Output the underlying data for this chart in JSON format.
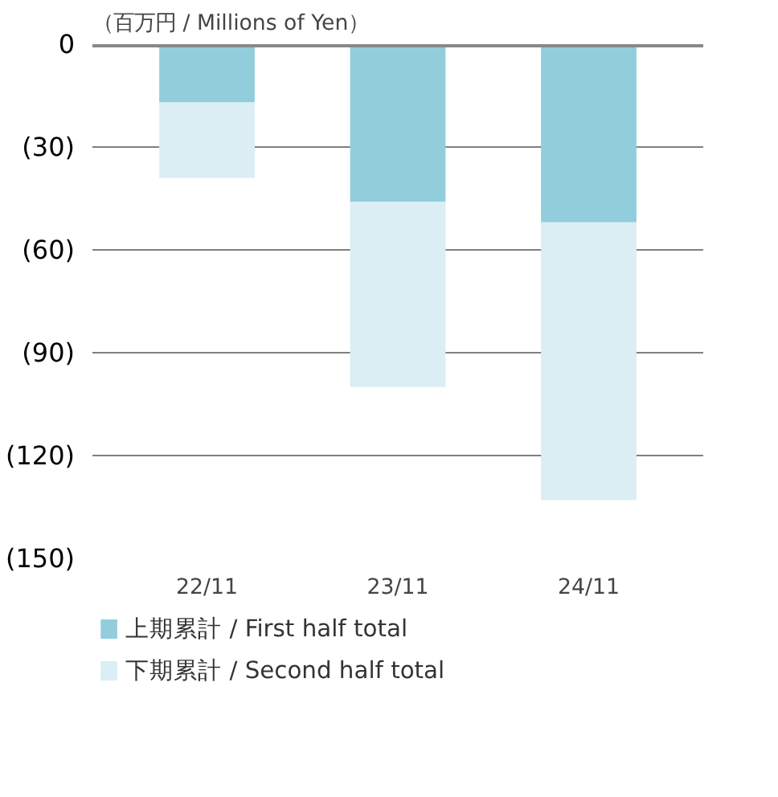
{
  "chart_data": {
    "type": "bar",
    "stacked": true,
    "ylabel": "（百万円 / Millions of Yen）",
    "categories": [
      "22/11",
      "23/11",
      "24/11"
    ],
    "series": [
      {
        "name": "上期累計 / First half total",
        "color": "#92cddc",
        "values": [
          -17,
          -46,
          -52
        ]
      },
      {
        "name": "下期累計 / Second half total",
        "color": "#daeef3",
        "values": [
          -22,
          -54,
          -81
        ]
      }
    ],
    "ylim": [
      -150,
      0
    ],
    "yticks": [
      {
        "value": 0,
        "label": "0"
      },
      {
        "value": -30,
        "label": "(30)"
      },
      {
        "value": -60,
        "label": "(60)"
      },
      {
        "value": -90,
        "label": "(90)"
      },
      {
        "value": -120,
        "label": "(120)"
      },
      {
        "value": -150,
        "label": "(150)"
      }
    ],
    "ref_lines": [
      {
        "axis": "y",
        "value": 0,
        "color": "#888888"
      }
    ],
    "grid": "y",
    "legend": "bottom"
  }
}
